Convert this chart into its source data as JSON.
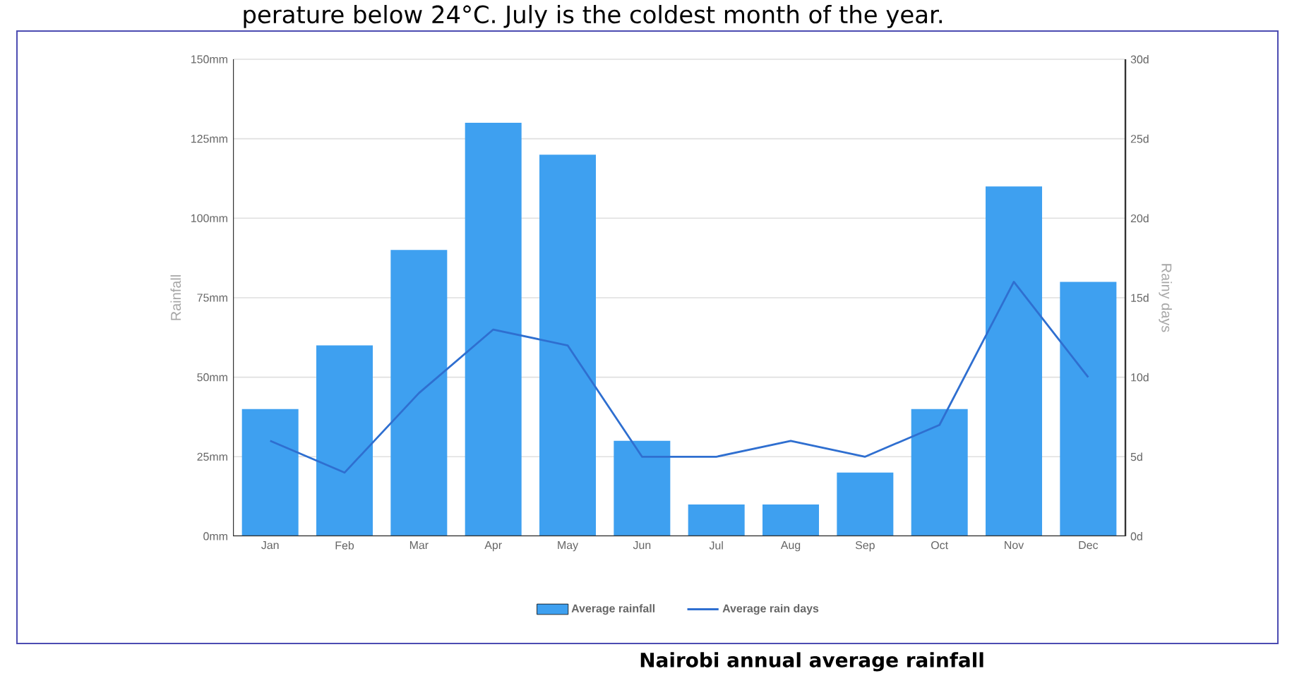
{
  "chart_data": {
    "type": "bar",
    "annotations": [
      "perature below 24°C. July is the coldest month of the year.",
      "Nairobi annual average rainfall"
    ],
    "ylabel": "Rainfall",
    "y2label": "Rainy days",
    "categories": [
      "Jan",
      "Feb",
      "Mar",
      "Apr",
      "May",
      "Jun",
      "Jul",
      "Aug",
      "Sep",
      "Oct",
      "Nov",
      "Dec"
    ],
    "series": [
      {
        "name": "Average rainfall",
        "color": "#3ea0f0",
        "values": [
          40,
          60,
          90,
          130,
          120,
          30,
          10,
          10,
          20,
          40,
          110,
          80
        ]
      },
      {
        "name": "Average rain days",
        "type": "line",
        "axis": "y2",
        "color": "#2f6fd0",
        "values": [
          6,
          4,
          9,
          13,
          12,
          5,
          5,
          6,
          5,
          7,
          16,
          10
        ]
      }
    ],
    "ylim": [
      0,
      150
    ],
    "yticks": [
      {
        "value": 0,
        "label": "0mm"
      },
      {
        "value": 25,
        "label": "25mm"
      },
      {
        "value": 50,
        "label": "50mm"
      },
      {
        "value": 75,
        "label": "75mm"
      },
      {
        "value": 100,
        "label": "100mm"
      },
      {
        "value": 125,
        "label": "125mm"
      },
      {
        "value": 150,
        "label": "150mm"
      }
    ],
    "y2lim": [
      0,
      30
    ],
    "y2ticks": [
      {
        "value": 0,
        "label": "0d"
      },
      {
        "value": 5,
        "label": "5d"
      },
      {
        "value": 10,
        "label": "10d"
      },
      {
        "value": 15,
        "label": "15d"
      },
      {
        "value": 20,
        "label": "20d"
      },
      {
        "value": 25,
        "label": "25d"
      },
      {
        "value": 30,
        "label": "30d"
      }
    ],
    "grid": "y",
    "legend": "bottom",
    "marker": "none"
  }
}
